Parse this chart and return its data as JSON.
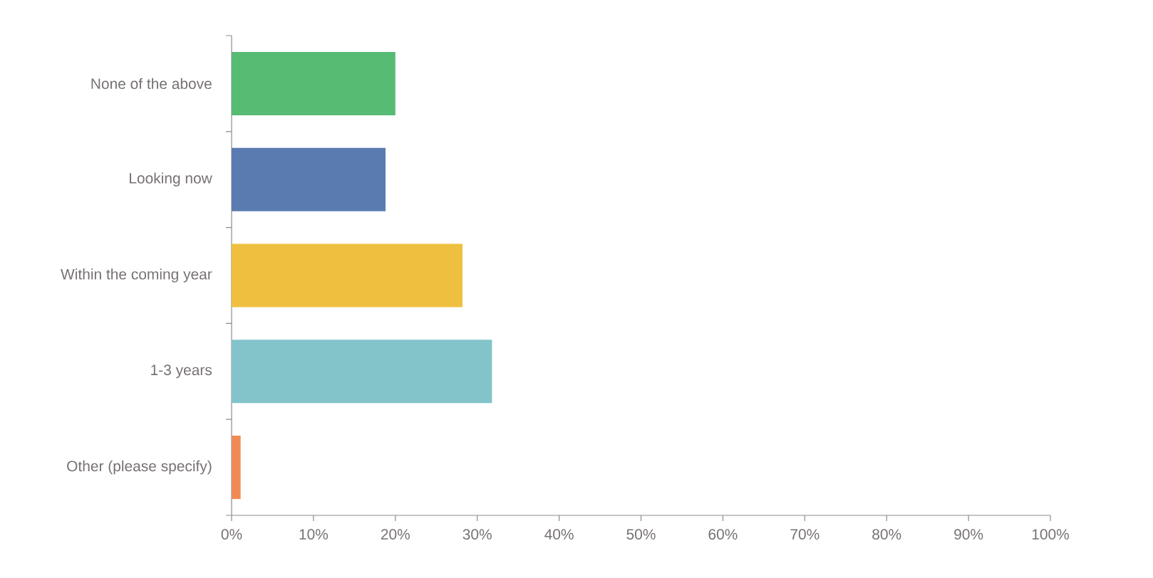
{
  "chart_data": {
    "type": "bar",
    "orientation": "horizontal",
    "categories": [
      "None of the above",
      "Looking now",
      "Within the coming year",
      "1-3 years",
      "Other (please specify)"
    ],
    "values": [
      20.0,
      18.8,
      28.2,
      31.8,
      1.1
    ],
    "colors": [
      "#57bb73",
      "#5a7bb0",
      "#efc040",
      "#82c4ca",
      "#f08a55"
    ],
    "xlim": [
      0,
      100
    ],
    "xticks": [
      {
        "value": 0,
        "label": "0%"
      },
      {
        "value": 10,
        "label": "10%"
      },
      {
        "value": 20,
        "label": "20%"
      },
      {
        "value": 30,
        "label": "30%"
      },
      {
        "value": 40,
        "label": "40%"
      },
      {
        "value": 50,
        "label": "50%"
      },
      {
        "value": 60,
        "label": "60%"
      },
      {
        "value": 70,
        "label": "70%"
      },
      {
        "value": 80,
        "label": "80%"
      },
      {
        "value": 90,
        "label": "90%"
      },
      {
        "value": 100,
        "label": "100%"
      }
    ],
    "grid": false
  }
}
